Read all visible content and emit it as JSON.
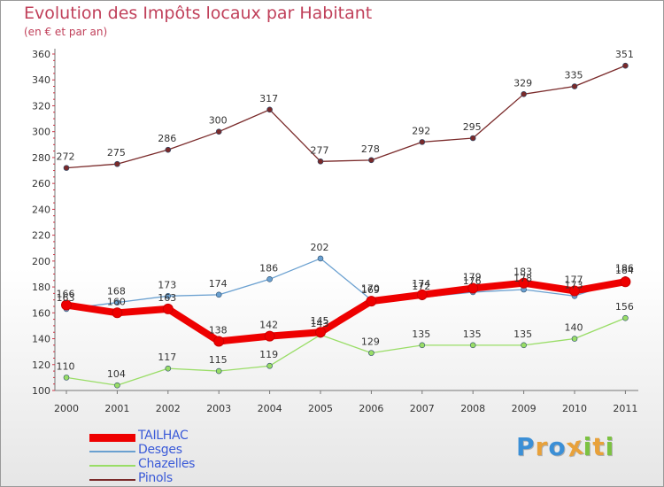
{
  "chart_data": {
    "type": "line",
    "title": "Evolution des Impôts locaux par Habitant",
    "subtitle": "(en € et par an)",
    "x": [
      "2000",
      "2001",
      "2002",
      "2003",
      "2004",
      "2005",
      "2006",
      "2007",
      "2008",
      "2009",
      "2010",
      "2011"
    ],
    "ylim": [
      100,
      360
    ],
    "yticks": [
      100,
      120,
      140,
      160,
      180,
      200,
      220,
      240,
      260,
      280,
      300,
      320,
      340,
      360
    ],
    "grid": false,
    "legend_position": "bottom-left",
    "series": [
      {
        "name": "TAILHAC",
        "color": "#ee0000",
        "values": [
          166,
          160,
          163,
          138,
          142,
          145,
          169,
          174,
          179,
          183,
          177,
          184
        ]
      },
      {
        "name": "Desges",
        "color": "#6aa0d0",
        "values": [
          163,
          168,
          173,
          174,
          186,
          202,
          170,
          172,
          176,
          178,
          173,
          186
        ]
      },
      {
        "name": "Chazelles",
        "color": "#99dd66",
        "values": [
          110,
          104,
          117,
          115,
          119,
          143,
          129,
          135,
          135,
          135,
          140,
          156
        ]
      },
      {
        "name": "Pinols",
        "color": "#7a2a2a",
        "values": [
          272,
          275,
          286,
          300,
          317,
          277,
          278,
          292,
          295,
          329,
          335,
          351
        ]
      }
    ]
  },
  "brand": {
    "letters": [
      "P",
      "r",
      "o",
      "x",
      "i",
      "t",
      "i"
    ],
    "colors": [
      "#3b8fd6",
      "#e8a13a",
      "#3b8fd6",
      "#e8a13a",
      "#7cc241",
      "#e8a13a",
      "#7cc241"
    ]
  }
}
